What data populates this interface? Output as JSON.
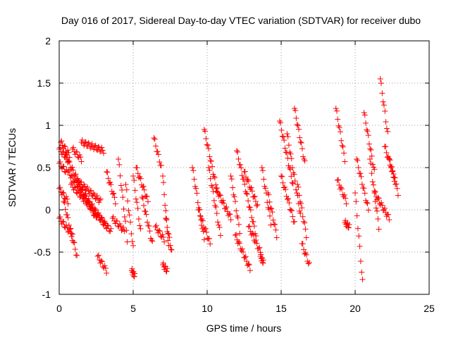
{
  "chart_data": {
    "type": "scatter",
    "title": "Day 016 of 2017, Sidereal Day-to-day VTEC variation (SDTVAR) for receiver dubo",
    "xlabel": "GPS time / hours",
    "ylabel": "SDTVAR / TECUs",
    "xlim": [
      0,
      25
    ],
    "ylim": [
      -1,
      2
    ],
    "xticks": [
      0,
      5,
      10,
      15,
      20,
      25
    ],
    "yticks": [
      -1,
      -0.5,
      0,
      0.5,
      1,
      1.5,
      2
    ],
    "ytick_labels": [
      "-1",
      "-0.5",
      "0",
      "0.5",
      "1",
      "1.5",
      "2"
    ],
    "grid": true,
    "marker": "+",
    "colors": {
      "points": "#ff0000",
      "grid": "#a0a0a0",
      "axes": "#000000"
    },
    "series": [
      {
        "name": "SDTVAR",
        "segments": [
          {
            "x": [
              0.0,
              0.6
            ],
            "y": [
              0.72,
              0.6
            ]
          },
          {
            "x": [
              0.0,
              0.5
            ],
            "y": [
              0.55,
              0.45
            ]
          },
          {
            "x": [
              0.1,
              0.7
            ],
            "y": [
              0.8,
              0.65
            ]
          },
          {
            "x": [
              0.0,
              0.6
            ],
            "y": [
              0.25,
              0.1
            ]
          },
          {
            "x": [
              0.0,
              0.9
            ],
            "y": [
              -0.1,
              -0.3
            ]
          },
          {
            "x": [
              0.4,
              2.5
            ],
            "y": [
              0.65,
              -0.1
            ]
          },
          {
            "x": [
              0.6,
              3.2
            ],
            "y": [
              0.45,
              -0.2
            ]
          },
          {
            "x": [
              0.8,
              3.5
            ],
            "y": [
              0.3,
              -0.25
            ]
          },
          {
            "x": [
              0.3,
              1.2
            ],
            "y": [
              0.1,
              -0.55
            ]
          },
          {
            "x": [
              0.9,
              1.5
            ],
            "y": [
              0.72,
              0.6
            ]
          },
          {
            "x": [
              1.5,
              3.0
            ],
            "y": [
              0.8,
              0.7
            ]
          },
          {
            "x": [
              1.2,
              2.8
            ],
            "y": [
              0.35,
              0.1
            ]
          },
          {
            "x": [
              2.6,
              3.2
            ],
            "y": [
              -0.55,
              -0.72
            ]
          },
          {
            "x": [
              3.2,
              3.8
            ],
            "y": [
              0.45,
              0.1
            ]
          },
          {
            "x": [
              3.6,
              4.4
            ],
            "y": [
              -0.1,
              -0.25
            ]
          },
          {
            "x": [
              4.0,
              4.6
            ],
            "y": [
              0.6,
              -0.35
            ]
          },
          {
            "x": [
              4.5,
              5.0
            ],
            "y": [
              0.3,
              -0.45
            ]
          },
          {
            "x": [
              5.0,
              5.5
            ],
            "y": [
              0.4,
              -0.25
            ]
          },
          {
            "x": [
              5.2,
              6.0
            ],
            "y": [
              0.5,
              0.1
            ]
          },
          {
            "x": [
              5.6,
              6.3
            ],
            "y": [
              0.15,
              -0.4
            ]
          },
          {
            "x": [
              4.9,
              5.1
            ],
            "y": [
              -0.72,
              -0.78
            ]
          },
          {
            "x": [
              6.4,
              6.9
            ],
            "y": [
              0.85,
              0.5
            ]
          },
          {
            "x": [
              6.5,
              7.1
            ],
            "y": [
              -0.2,
              -0.35
            ]
          },
          {
            "x": [
              7.0,
              7.4
            ],
            "y": [
              0.4,
              -0.45
            ]
          },
          {
            "x": [
              7.2,
              7.6
            ],
            "y": [
              -0.1,
              -0.5
            ]
          },
          {
            "x": [
              7.0,
              7.3
            ],
            "y": [
              -0.65,
              -0.72
            ]
          },
          {
            "x": [
              9.0,
              9.8
            ],
            "y": [
              0.5,
              -0.35
            ]
          },
          {
            "x": [
              9.4,
              10.2
            ],
            "y": [
              0.0,
              -0.4
            ]
          },
          {
            "x": [
              9.8,
              10.7
            ],
            "y": [
              0.95,
              0.2
            ]
          },
          {
            "x": [
              10.1,
              10.9
            ],
            "y": [
              0.5,
              -0.3
            ]
          },
          {
            "x": [
              10.6,
              11.6
            ],
            "y": [
              0.25,
              -0.1
            ]
          },
          {
            "x": [
              11.6,
              12.2
            ],
            "y": [
              0.4,
              -0.25
            ]
          },
          {
            "x": [
              11.9,
              12.9
            ],
            "y": [
              -0.3,
              -0.7
            ]
          },
          {
            "x": [
              12.0,
              13.3
            ],
            "y": [
              0.7,
              -0.3
            ]
          },
          {
            "x": [
              12.5,
              13.4
            ],
            "y": [
              0.45,
              0.05
            ]
          },
          {
            "x": [
              12.8,
              13.6
            ],
            "y": [
              -0.2,
              -0.5
            ]
          },
          {
            "x": [
              13.7,
              14.3
            ],
            "y": [
              0.5,
              -0.15
            ]
          },
          {
            "x": [
              14.1,
              14.7
            ],
            "y": [
              0.2,
              -0.3
            ]
          },
          {
            "x": [
              13.6,
              13.8
            ],
            "y": [
              -0.55,
              -0.62
            ]
          },
          {
            "x": [
              14.9,
              15.8
            ],
            "y": [
              1.05,
              0.3
            ]
          },
          {
            "x": [
              15.0,
              15.9
            ],
            "y": [
              0.4,
              -0.15
            ]
          },
          {
            "x": [
              15.4,
              16.3
            ],
            "y": [
              0.9,
              -0.05
            ]
          },
          {
            "x": [
              15.9,
              16.6
            ],
            "y": [
              1.2,
              0.55
            ]
          },
          {
            "x": [
              16.1,
              16.7
            ],
            "y": [
              0.3,
              -0.3
            ]
          },
          {
            "x": [
              16.4,
              16.9
            ],
            "y": [
              -0.4,
              -0.65
            ]
          },
          {
            "x": [
              18.7,
              19.3
            ],
            "y": [
              1.2,
              0.6
            ]
          },
          {
            "x": [
              18.8,
              19.4
            ],
            "y": [
              0.35,
              0.1
            ]
          },
          {
            "x": [
              19.3,
              19.6
            ],
            "y": [
              -0.15,
              -0.2
            ]
          },
          {
            "x": [
              20.0,
              20.5
            ],
            "y": [
              0.2,
              -0.85
            ]
          },
          {
            "x": [
              20.1,
              20.9
            ],
            "y": [
              0.6,
              0.0
            ]
          },
          {
            "x": [
              20.6,
              21.3
            ],
            "y": [
              1.15,
              0.45
            ]
          },
          {
            "x": [
              21.0,
              21.6
            ],
            "y": [
              0.6,
              -0.2
            ]
          },
          {
            "x": [
              21.3,
              22.3
            ],
            "y": [
              0.2,
              -0.1
            ]
          },
          {
            "x": [
              21.7,
              22.2
            ],
            "y": [
              1.55,
              0.9
            ]
          },
          {
            "x": [
              22.0,
              22.7
            ],
            "y": [
              0.75,
              0.35
            ]
          },
          {
            "x": [
              22.3,
              22.9
            ],
            "y": [
              0.6,
              0.2
            ]
          }
        ]
      }
    ]
  }
}
